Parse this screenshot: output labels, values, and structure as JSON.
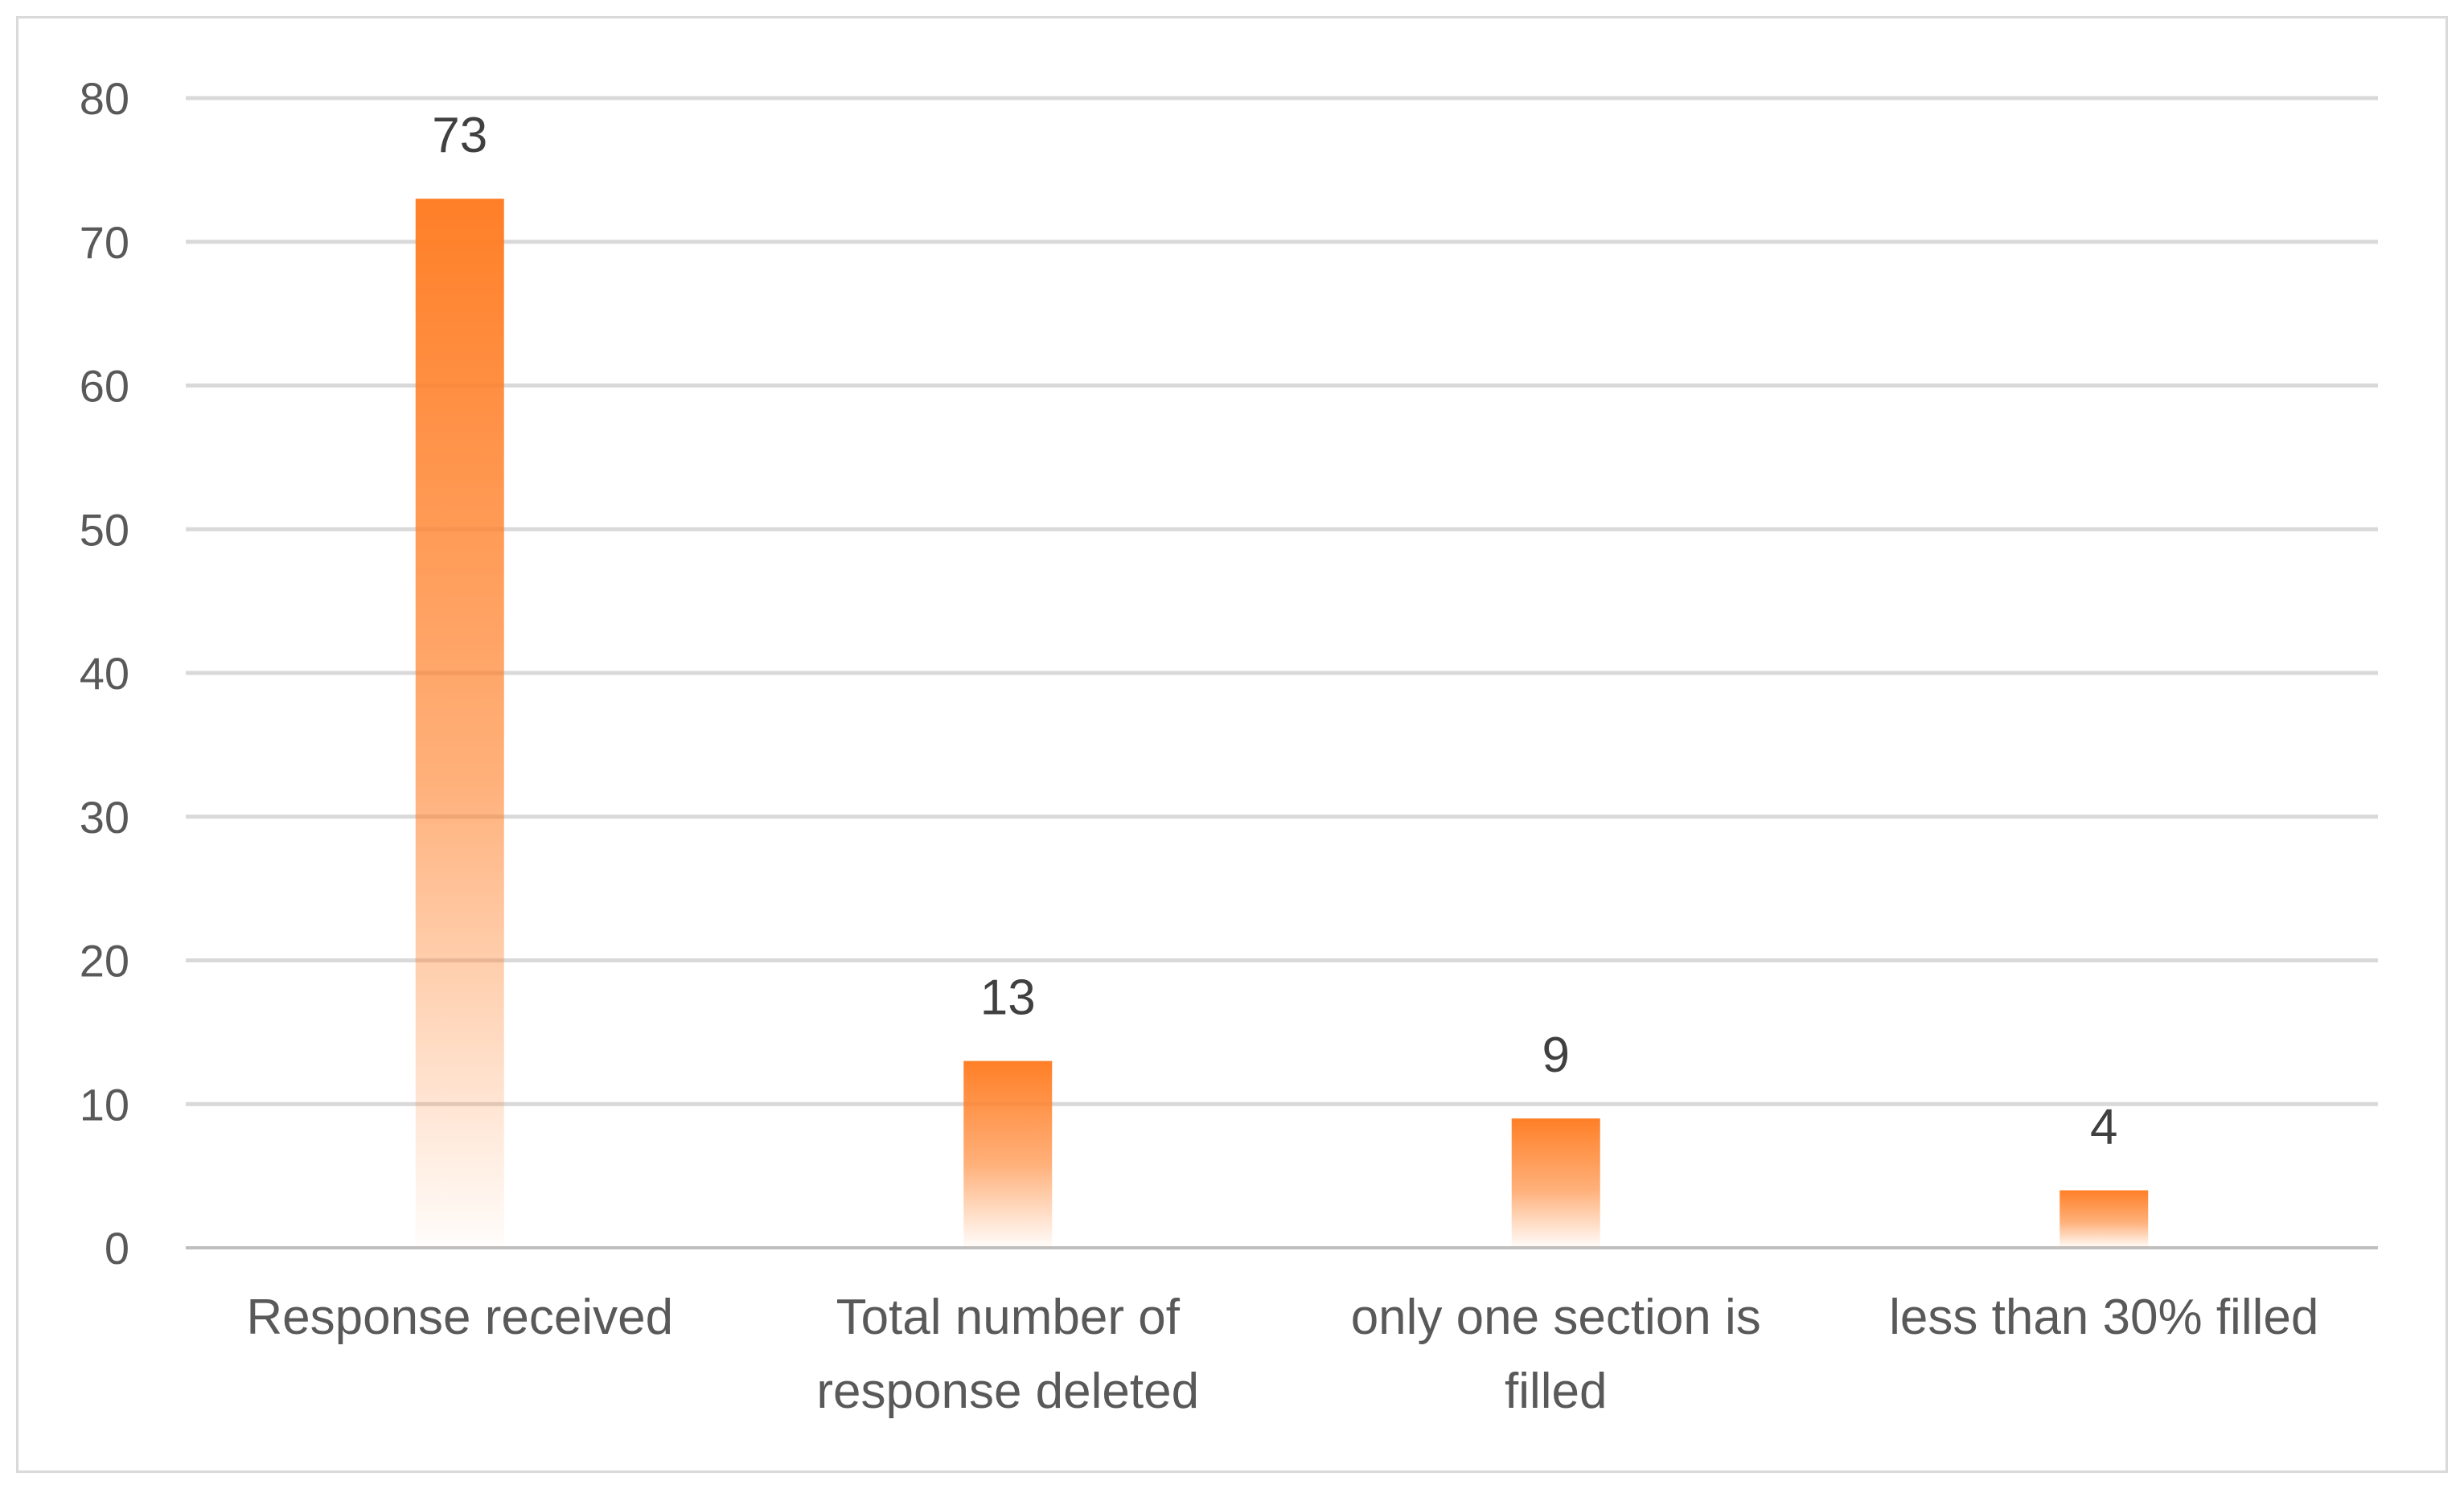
{
  "chart_data": {
    "type": "bar",
    "title": "",
    "xlabel": "",
    "ylabel": "",
    "categories": [
      [
        "Response received"
      ],
      [
        "Total number of",
        "response deleted"
      ],
      [
        "only one section is",
        "filled"
      ],
      [
        "less than 30% filled"
      ]
    ],
    "values": [
      73,
      13,
      9,
      4
    ],
    "data_labels": [
      "73",
      "13",
      "9",
      "4"
    ],
    "ylim": [
      0,
      80
    ],
    "yticks": [
      0,
      10,
      20,
      30,
      40,
      50,
      60,
      70,
      80
    ],
    "ytick_labels": [
      "0",
      "10",
      "20",
      "30",
      "40",
      "50",
      "60",
      "70",
      "80"
    ],
    "grid": true,
    "legend": "none",
    "colors": {
      "bar": "#ff7f27",
      "bar_fade": "#ffffff",
      "grid": "#d9d9d9",
      "baseline": "#bfbfbf"
    }
  }
}
